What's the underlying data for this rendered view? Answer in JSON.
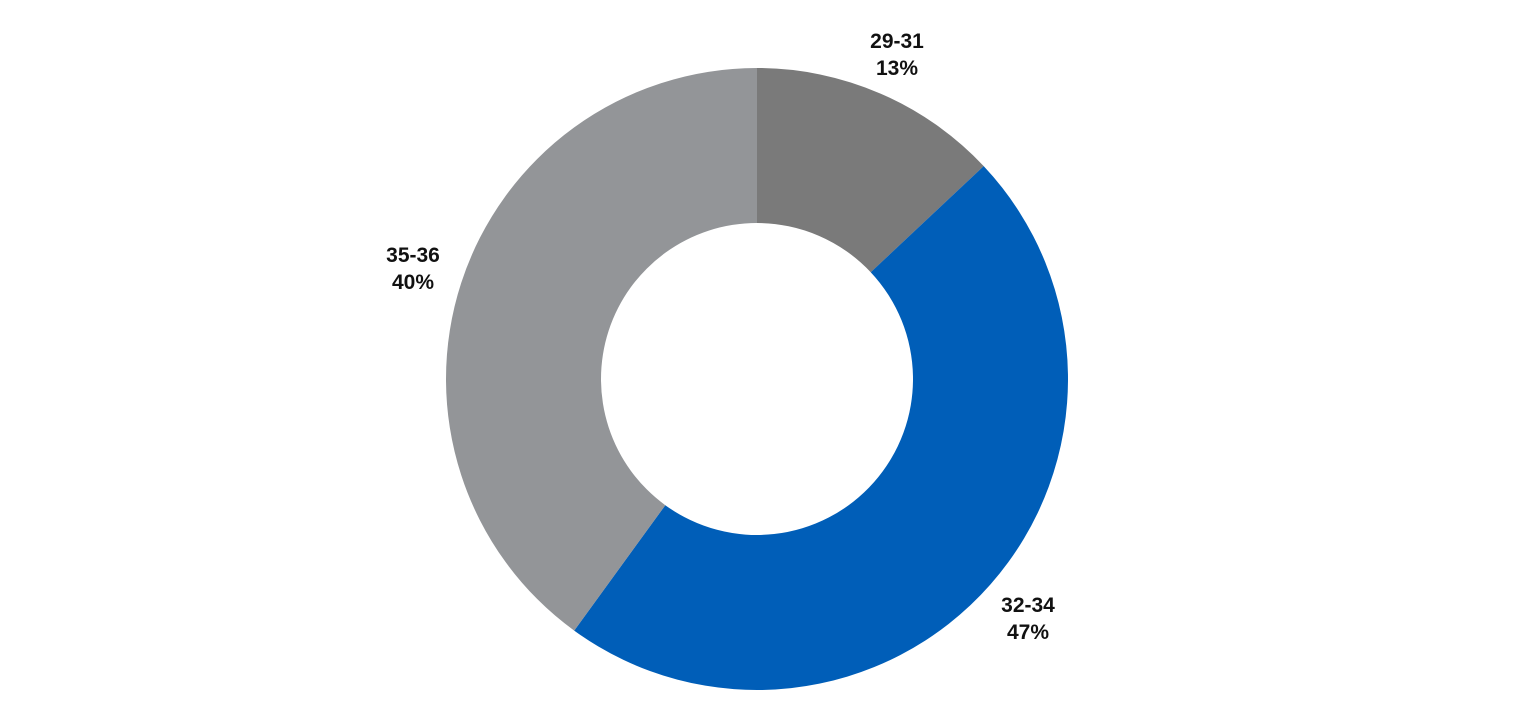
{
  "chart_data": {
    "type": "pie",
    "donut": true,
    "title": "",
    "slices": [
      {
        "label": "29-31",
        "value": 13,
        "value_label": "13%",
        "color": "#7a7a7a"
      },
      {
        "label": "32-34",
        "value": 47,
        "value_label": "47%",
        "color": "#005eb8"
      },
      {
        "label": "35-36",
        "value": 40,
        "value_label": "40%",
        "color": "#939598"
      }
    ],
    "start_angle": "12 o'clock",
    "direction": "clockwise",
    "legend": "none",
    "data_labels": "outside, category above percentage"
  }
}
